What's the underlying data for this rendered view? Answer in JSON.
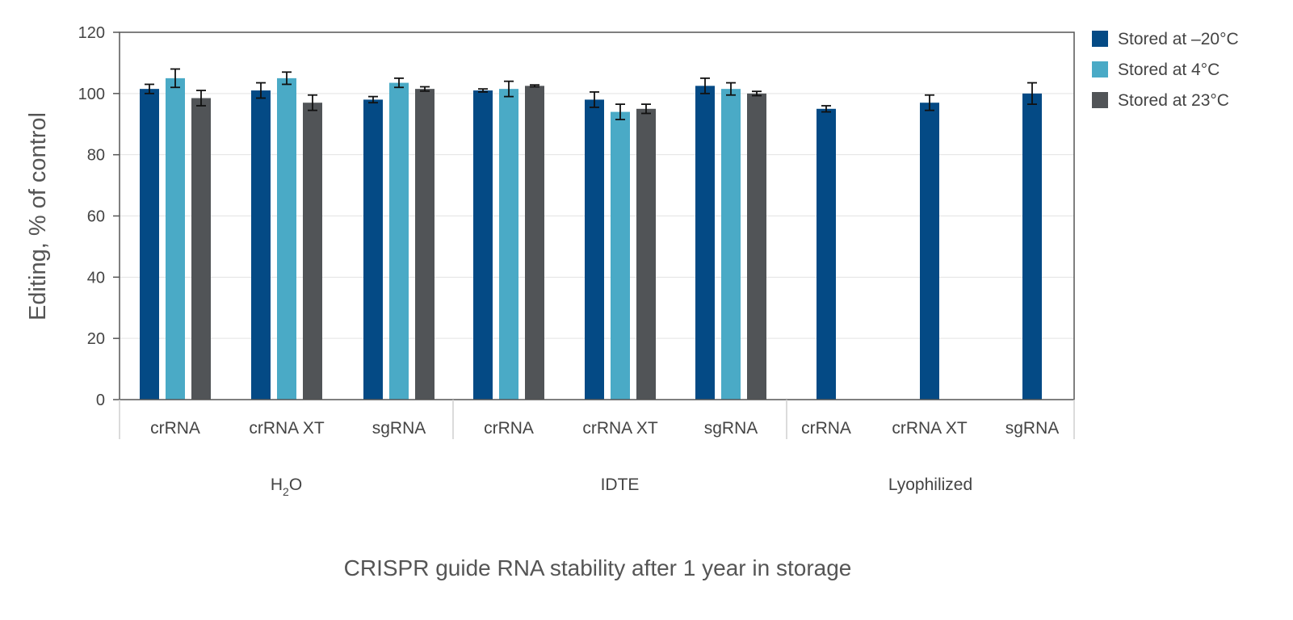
{
  "chart_data": {
    "type": "bar",
    "title": "",
    "xlabel": "CRISPR guide RNA stability after 1 year in storage",
    "ylabel": "Editing, % of control",
    "ylim": [
      0,
      120
    ],
    "yticks": [
      "0",
      "20",
      "40",
      "60",
      "80",
      "100",
      "120"
    ],
    "grid": true,
    "legend_position": "top-right",
    "groups": [
      {
        "label": "H",
        "label_sub": "2",
        "label_tail": "O",
        "categories": [
          "crRNA",
          "crRNA XT",
          "sgRNA"
        ]
      },
      {
        "label": "IDTE",
        "label_sub": "",
        "label_tail": "",
        "categories": [
          "crRNA",
          "crRNA XT",
          "sgRNA"
        ]
      },
      {
        "label": "Lyophilized",
        "label_sub": "",
        "label_tail": "",
        "categories": [
          "crRNA",
          "crRNA XT",
          "sgRNA"
        ]
      }
    ],
    "series": [
      {
        "name": "Stored at –20°C",
        "color": "#044a85",
        "values": [
          101.5,
          101,
          98,
          101,
          98,
          102.5,
          95,
          97,
          100
        ],
        "errors": [
          1.5,
          2.5,
          1,
          0.5,
          2.5,
          2.5,
          1,
          2.5,
          3.5
        ]
      },
      {
        "name": "Stored at 4°C",
        "color": "#4aaac6",
        "values": [
          105,
          105,
          103.5,
          101.5,
          94,
          101.5,
          null,
          null,
          null
        ],
        "errors": [
          3,
          2,
          1.5,
          2.5,
          2.5,
          2,
          null,
          null,
          null
        ]
      },
      {
        "name": "Stored at 23°C",
        "color": "#515457",
        "values": [
          98.5,
          97,
          101.5,
          102.5,
          95,
          100,
          null,
          null,
          null
        ],
        "errors": [
          2.5,
          2.5,
          0.7,
          0.3,
          1.5,
          0.7,
          null,
          null,
          null
        ]
      }
    ]
  }
}
